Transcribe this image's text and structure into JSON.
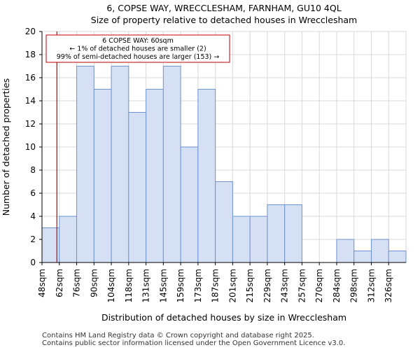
{
  "chart_data": {
    "type": "bar",
    "title": "6, COPSE WAY, WRECCLESHAM, FARNHAM, GU10 4QL",
    "subtitle": "Size of property relative to detached houses in Wrecclesham",
    "xlabel": "Distribution of detached houses by size in Wrecclesham",
    "ylabel": "Number of detached properties",
    "ylim": [
      0,
      20
    ],
    "yticks": [
      0,
      2,
      4,
      6,
      8,
      10,
      12,
      14,
      16,
      18,
      20
    ],
    "categories": [
      "48sqm",
      "62sqm",
      "76sqm",
      "90sqm",
      "104sqm",
      "118sqm",
      "131sqm",
      "145sqm",
      "159sqm",
      "173sqm",
      "187sqm",
      "201sqm",
      "215sqm",
      "229sqm",
      "243sqm",
      "257sqm",
      "270sqm",
      "284sqm",
      "298sqm",
      "312sqm",
      "326sqm"
    ],
    "values": [
      3,
      4,
      17,
      15,
      17,
      13,
      15,
      17,
      10,
      15,
      7,
      4,
      4,
      5,
      5,
      0,
      0,
      2,
      1,
      2,
      1
    ],
    "grid": true,
    "bar_color": "#d6e0f4",
    "bar_edge_color": "#6f93d2",
    "marker": {
      "value_sqm": 60,
      "bin_position": 0.86,
      "color": "#c00000",
      "lines": [
        "6 COPSE WAY: 60sqm",
        "← 1% of detached houses are smaller (2)",
        "99% of semi-detached houses are larger (153) →"
      ]
    },
    "footer": [
      "Contains HM Land Registry data © Crown copyright and database right 2025.",
      "Contains public sector information licensed under the Open Government Licence v3.0."
    ]
  }
}
